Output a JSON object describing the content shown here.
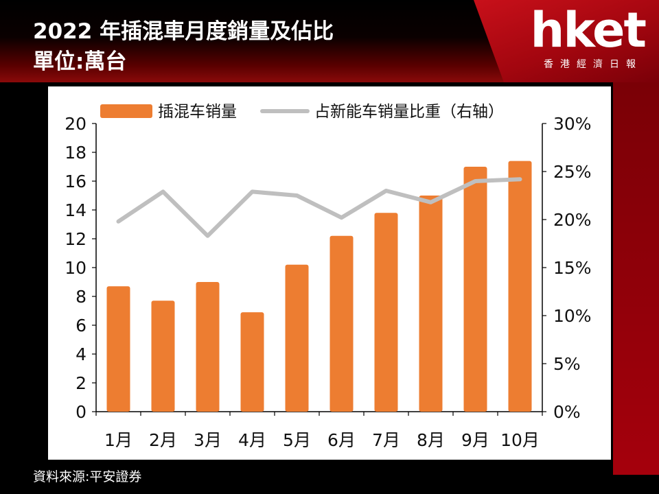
{
  "title": {
    "line1": "2022 年插混車月度銷量及佔比",
    "line2": "單位:萬台"
  },
  "logo": {
    "word": "hket",
    "subtitle": "香港經濟日報"
  },
  "source": "資料來源:平安證券",
  "colors": {
    "bar": "#ED7D31",
    "line": "#BFBFBF",
    "brand": "#C8101A"
  },
  "chart_data": {
    "type": "bar",
    "categories": [
      "1月",
      "2月",
      "3月",
      "4月",
      "5月",
      "6月",
      "7月",
      "8月",
      "9月",
      "10月"
    ],
    "series": [
      {
        "name": "插混车销量",
        "type": "bar",
        "axis": "left",
        "values": [
          8.7,
          7.7,
          9.0,
          6.9,
          10.2,
          12.2,
          13.8,
          15.0,
          17.0,
          17.4
        ]
      },
      {
        "name": "占新能车销量比重（右轴）",
        "type": "line",
        "axis": "right",
        "values": [
          19.8,
          22.9,
          18.3,
          22.9,
          22.5,
          20.2,
          23.0,
          21.8,
          24.0,
          24.2
        ]
      }
    ],
    "ylim": [
      0,
      20
    ],
    "yticks": [
      "0",
      "2",
      "4",
      "6",
      "8",
      "10",
      "12",
      "14",
      "16",
      "18",
      "20"
    ],
    "y2lim": [
      0,
      30
    ],
    "y2ticks": [
      "0%",
      "5%",
      "10%",
      "15%",
      "20%",
      "25%",
      "30%"
    ],
    "legend": "top",
    "grid": false
  }
}
